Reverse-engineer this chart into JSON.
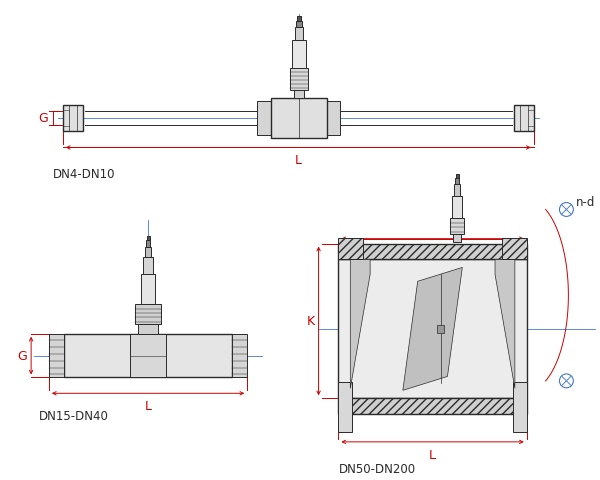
{
  "bg_color": "#ffffff",
  "line_color": "#2a2a2a",
  "red_color": "#cc0000",
  "blue_color": "#4477cc",
  "label_dn4": "DN4-DN10",
  "label_dn15": "DN15-DN40",
  "label_dn50": "DN50-DN200",
  "label_G": "G",
  "label_L": "L",
  "label_K": "K",
  "label_nd": "n-d",
  "fig_width": 6.0,
  "fig_height": 4.81
}
